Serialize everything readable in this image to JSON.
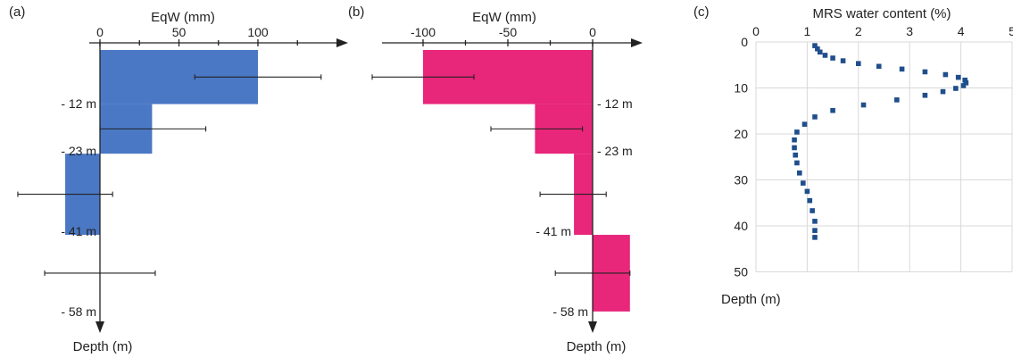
{
  "chart_data": [
    {
      "type": "bar",
      "panel": "(a)",
      "xlabel": "EqW (mm)",
      "ylabel": "Depth (m)",
      "xticks": [
        0,
        50,
        100
      ],
      "xlim": [
        -25,
        150
      ],
      "depth_labels": [
        "- 12 m",
        "- 23 m",
        "- 41 m",
        "- 58 m"
      ],
      "bar_color": "#4a78c4",
      "bars": [
        {
          "depth_top": 0,
          "depth_bottom": 12,
          "value": 100,
          "err_low": 60,
          "err_high": 140
        },
        {
          "depth_top": 12,
          "depth_bottom": 23,
          "value": 33,
          "err_low": 0,
          "err_high": 67
        },
        {
          "depth_top": 23,
          "depth_bottom": 41,
          "value": -22,
          "err_low": -52,
          "err_high": 8
        },
        {
          "depth_top": 41,
          "depth_bottom": 58,
          "value": 0,
          "err_low": -35,
          "err_high": 35
        }
      ]
    },
    {
      "type": "bar",
      "panel": "(b)",
      "xlabel": "EqW (mm)",
      "ylabel": "Depth (m)",
      "xticks": [
        -100,
        -50,
        0
      ],
      "xlim": [
        -130,
        30
      ],
      "depth_labels": [
        "- 12 m",
        "- 23 m",
        "- 41 m",
        "- 58 m"
      ],
      "bar_color": "#e8267a",
      "bars": [
        {
          "depth_top": 0,
          "depth_bottom": 12,
          "value": -100,
          "err_low": -130,
          "err_high": -70
        },
        {
          "depth_top": 12,
          "depth_bottom": 23,
          "value": -34,
          "err_low": -60,
          "err_high": -6
        },
        {
          "depth_top": 23,
          "depth_bottom": 41,
          "value": -11,
          "err_low": -31,
          "err_high": 8
        },
        {
          "depth_top": 41,
          "depth_bottom": 58,
          "value": 22,
          "err_low": -22,
          "err_high": 22
        }
      ]
    },
    {
      "type": "scatter",
      "panel": "(c)",
      "xlabel": "MRS water content (%)",
      "ylabel": "Depth (m)",
      "xticks": [
        0,
        1,
        2,
        3,
        4,
        5
      ],
      "yticks": [
        0,
        10,
        20,
        30,
        40,
        50
      ],
      "xlim": [
        0,
        5
      ],
      "ylim": [
        0,
        50
      ],
      "grid": true,
      "marker_color": "#1f4e8c",
      "points": [
        {
          "x": 1.15,
          "y": 0.8
        },
        {
          "x": 1.2,
          "y": 1.5
        },
        {
          "x": 1.25,
          "y": 2.2
        },
        {
          "x": 1.35,
          "y": 2.9
        },
        {
          "x": 1.5,
          "y": 3.5
        },
        {
          "x": 1.7,
          "y": 4.1
        },
        {
          "x": 2.0,
          "y": 4.7
        },
        {
          "x": 2.4,
          "y": 5.3
        },
        {
          "x": 2.85,
          "y": 5.9
        },
        {
          "x": 3.3,
          "y": 6.5
        },
        {
          "x": 3.7,
          "y": 7.1
        },
        {
          "x": 3.95,
          "y": 7.7
        },
        {
          "x": 4.08,
          "y": 8.3
        },
        {
          "x": 4.1,
          "y": 8.9
        },
        {
          "x": 4.05,
          "y": 9.5
        },
        {
          "x": 3.9,
          "y": 10.1
        },
        {
          "x": 3.65,
          "y": 10.8
        },
        {
          "x": 3.3,
          "y": 11.6
        },
        {
          "x": 2.75,
          "y": 12.6
        },
        {
          "x": 2.1,
          "y": 13.7
        },
        {
          "x": 1.5,
          "y": 14.9
        },
        {
          "x": 1.15,
          "y": 16.3
        },
        {
          "x": 0.95,
          "y": 17.9
        },
        {
          "x": 0.8,
          "y": 19.6
        },
        {
          "x": 0.75,
          "y": 21.3
        },
        {
          "x": 0.75,
          "y": 23.0
        },
        {
          "x": 0.77,
          "y": 24.6
        },
        {
          "x": 0.8,
          "y": 26.3
        },
        {
          "x": 0.85,
          "y": 28.5
        },
        {
          "x": 0.92,
          "y": 30.7
        },
        {
          "x": 1.0,
          "y": 32.5
        },
        {
          "x": 1.05,
          "y": 34.5
        },
        {
          "x": 1.1,
          "y": 36.7
        },
        {
          "x": 1.15,
          "y": 39.0
        },
        {
          "x": 1.15,
          "y": 41.0
        },
        {
          "x": 1.15,
          "y": 42.5
        }
      ]
    }
  ]
}
